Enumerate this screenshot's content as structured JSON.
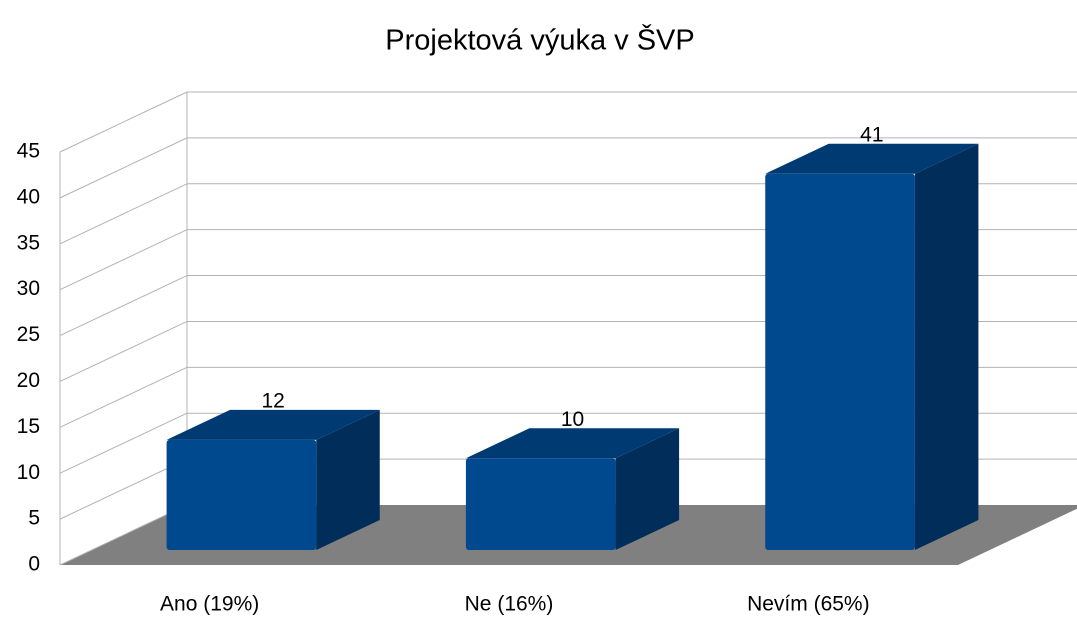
{
  "chart_data": {
    "type": "bar3d",
    "title": "Projektová výuka v ŠVP",
    "categories": [
      "Ano (19%)",
      "Ne  (16%)",
      "Nevím (65%)"
    ],
    "values": [
      12,
      10,
      41
    ],
    "color": "#00498f",
    "ylim": [
      0,
      45
    ],
    "yticks": [
      0,
      5,
      10,
      15,
      20,
      25,
      30,
      35,
      40,
      45
    ],
    "grid": true
  }
}
